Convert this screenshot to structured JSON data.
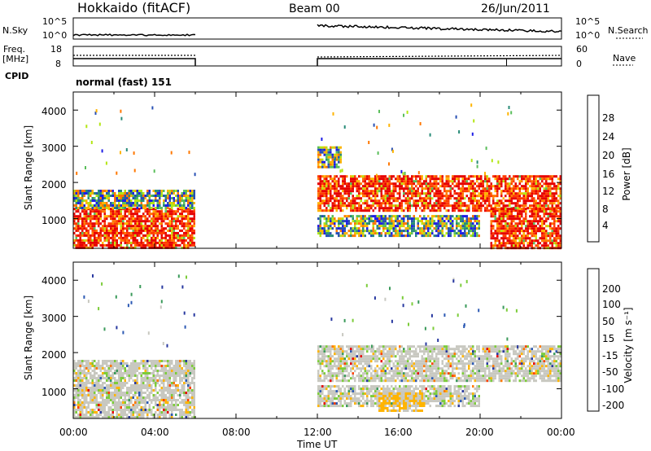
{
  "header": {
    "station": "Hokkaido (fitACF)",
    "beam": "Beam 00",
    "date": "26/Jun/2011"
  },
  "noise_panel": {
    "left_label": "N.Sky",
    "right_label": "N.Search",
    "y_ticks": [
      "10^5",
      "10^0"
    ]
  },
  "freq_panel": {
    "left_label_line1": "Freq.",
    "left_label_line2": "[MHz]",
    "left_ticks": [
      "18",
      "8"
    ],
    "right_label": "Nave",
    "right_ticks": [
      "60",
      "0"
    ]
  },
  "cpid": {
    "label": "CPID",
    "mode": "normal (fast) 151"
  },
  "time_axis": {
    "label": "Time UT",
    "ticks": [
      "00:00",
      "04:00",
      "08:00",
      "12:00",
      "16:00",
      "20:00",
      "00:00"
    ]
  },
  "power_panel": {
    "ylabel": "Slant Range [km]",
    "y_ticks": [
      "1000",
      "2000",
      "3000",
      "4000"
    ],
    "colorbar_label": "Power [dB]",
    "colorbar_ticks": [
      "28",
      "24",
      "20",
      "16",
      "12",
      "8",
      "4"
    ],
    "colors": [
      "#e60000",
      "#ff3c00",
      "#ff7800",
      "#ffb400",
      "#b4e614",
      "#5abe5a",
      "#288c78",
      "#2850b4",
      "#1e1ee6"
    ]
  },
  "velocity_panel": {
    "ylabel": "Slant Range [km]",
    "y_ticks": [
      "1000",
      "2000",
      "3000",
      "4000"
    ],
    "colorbar_label": "Velocity [m s⁻¹]",
    "colorbar_ticks": [
      "200",
      "100",
      "50",
      "15",
      "-15",
      "-50",
      "-100",
      "-200"
    ],
    "colors": [
      "#2838a0",
      "#2d5ab4",
      "#3a9a5a",
      "#7ccc3a",
      "#c8c8c0",
      "#ffb400",
      "#ff7800",
      "#ff4000",
      "#e60000"
    ]
  },
  "chart_data": {
    "type": "heatmap",
    "x_range_hours": [
      0,
      24
    ],
    "y_range_km": [
      180,
      4500
    ],
    "data_gap_hours": [
      6.0,
      12.0
    ],
    "power_bands": [
      {
        "t0": 0,
        "t1": 6,
        "r0": 180,
        "r1": 700,
        "level": "high"
      },
      {
        "t0": 0,
        "t1": 6,
        "r0": 700,
        "r1": 1300,
        "level": "high"
      },
      {
        "t0": 0,
        "t1": 6,
        "r0": 1300,
        "r1": 1800,
        "level": "mid"
      },
      {
        "t0": 12,
        "t1": 24,
        "r0": 1200,
        "r1": 2200,
        "level": "high"
      },
      {
        "t0": 12,
        "t1": 20,
        "r0": 500,
        "r1": 1100,
        "level": "mid"
      },
      {
        "t0": 12,
        "t1": 13.2,
        "r0": 2400,
        "r1": 3000,
        "level": "mid"
      },
      {
        "t0": 20.5,
        "t1": 24,
        "r0": 180,
        "r1": 1300,
        "level": "high"
      }
    ],
    "velocity_bands": [
      {
        "t0": 0,
        "t1": 6,
        "r0": 180,
        "r1": 1800,
        "level": "near-zero"
      },
      {
        "t0": 12,
        "t1": 24,
        "r0": 1200,
        "r1": 2200,
        "level": "near-zero"
      },
      {
        "t0": 12,
        "t1": 20,
        "r0": 500,
        "r1": 1100,
        "level": "near-zero"
      },
      {
        "t0": 15,
        "t1": 17.3,
        "r0": 400,
        "r1": 900,
        "level": "negative"
      }
    ]
  }
}
